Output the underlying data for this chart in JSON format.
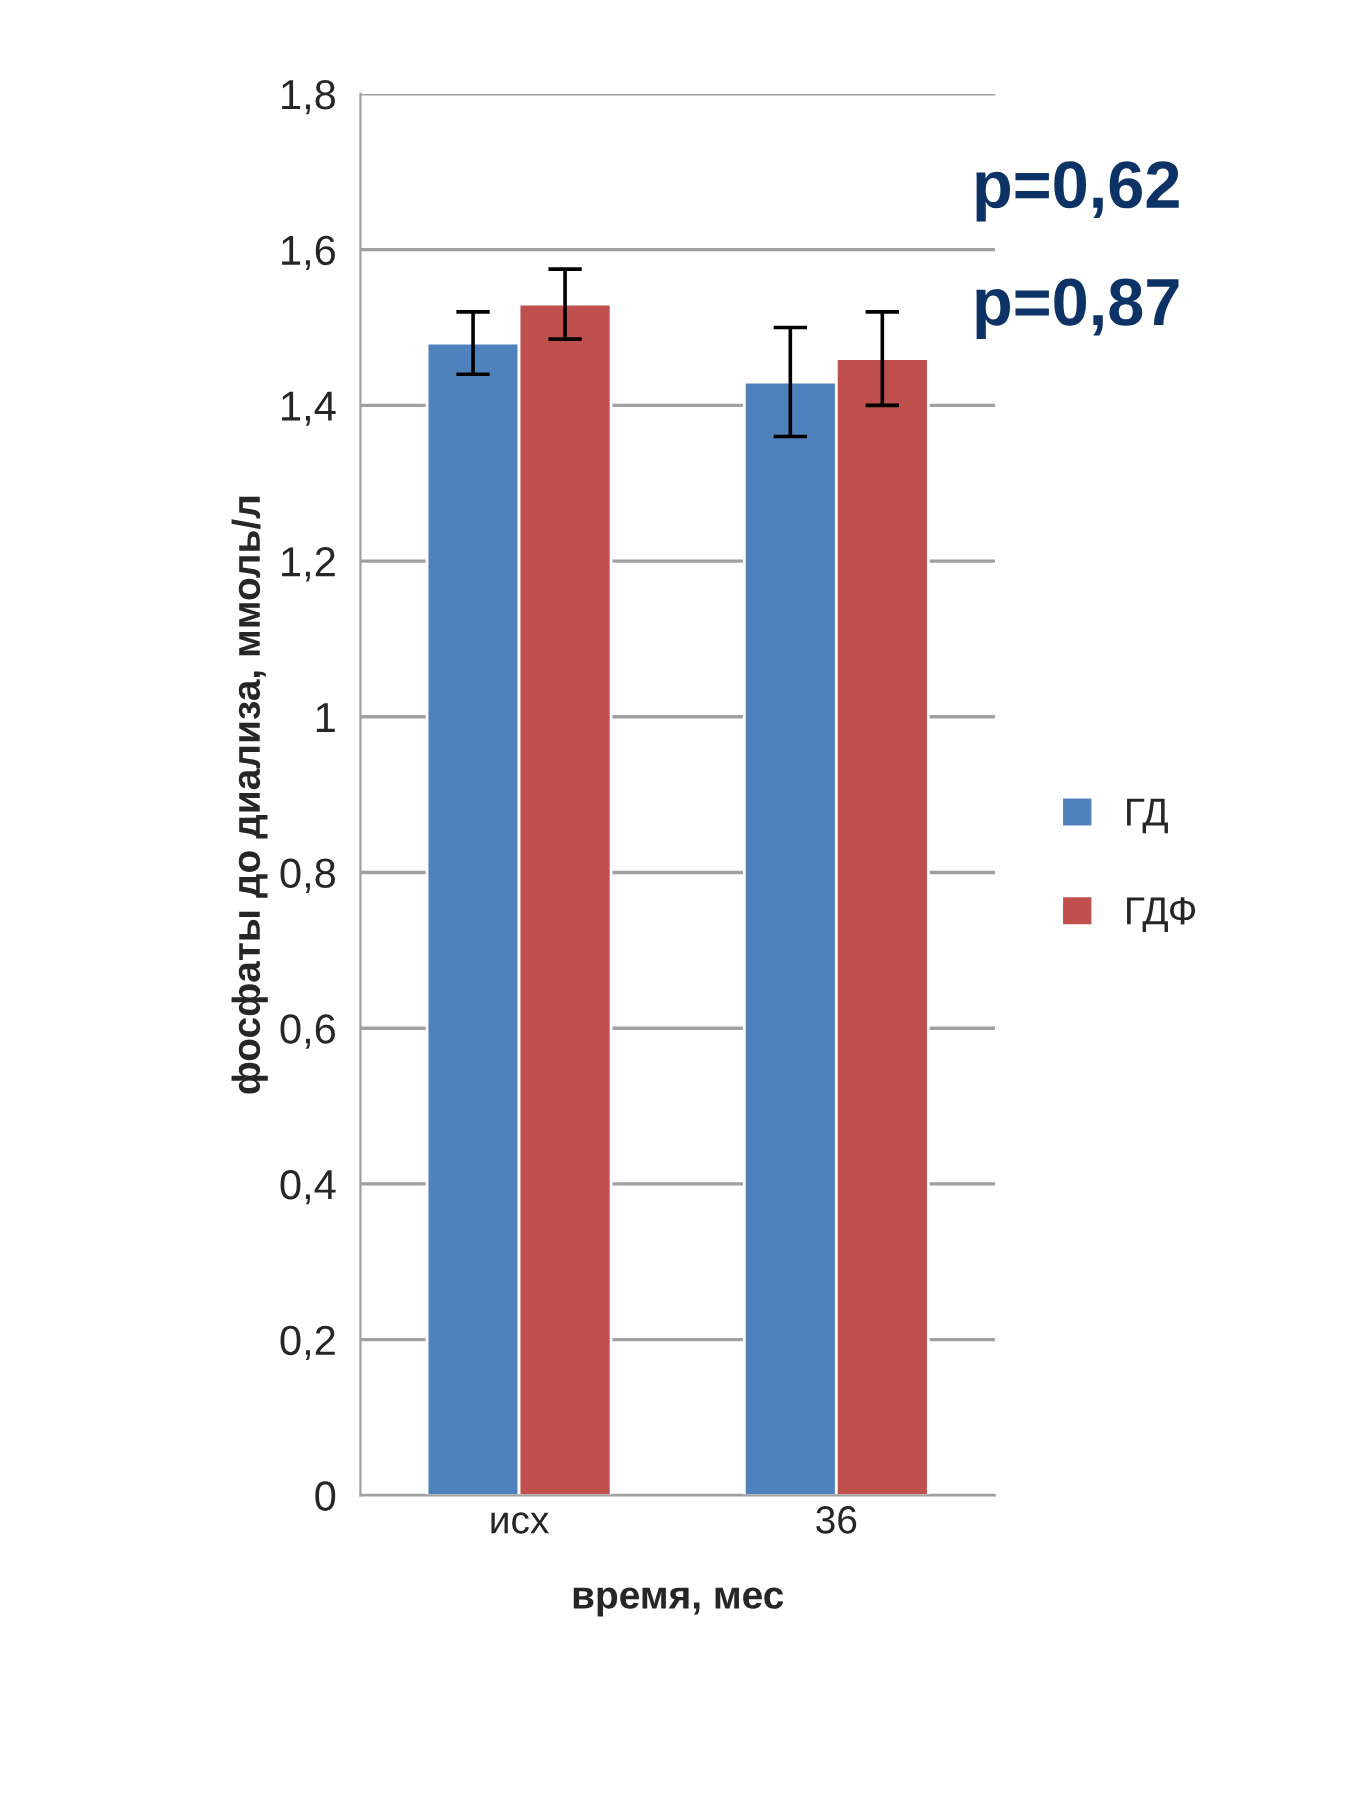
{
  "chart_data": {
    "type": "bar",
    "xlabel": "время, мес",
    "ylabel": "фосфаты до диализа, ммоль/л",
    "categories": [
      "исх",
      "36"
    ],
    "series": [
      {
        "name": "ГД",
        "color": "#4f81bd",
        "values": [
          1.48,
          1.43
        ],
        "errors": [
          0.04,
          0.07
        ]
      },
      {
        "name": "ГДФ",
        "color": "#c0504d",
        "values": [
          1.53,
          1.46
        ],
        "errors": [
          0.045,
          0.06
        ]
      }
    ],
    "ylim": [
      0,
      1.8
    ],
    "yticks": [
      {
        "value": 0,
        "label": "0"
      },
      {
        "value": 0.2,
        "label": "0,2"
      },
      {
        "value": 0.4,
        "label": "0,4"
      },
      {
        "value": 0.6,
        "label": "0,6"
      },
      {
        "value": 0.8,
        "label": "0,8"
      },
      {
        "value": 1,
        "label": "1"
      },
      {
        "value": 1.2,
        "label": "1,2"
      },
      {
        "value": 1.4,
        "label": "1,4"
      },
      {
        "value": 1.6,
        "label": "1,6"
      },
      {
        "value": 1.8,
        "label": "1,8"
      }
    ],
    "grid": "y",
    "legend": "right",
    "annotations": [
      "p=0,62",
      "p=0,87"
    ]
  }
}
